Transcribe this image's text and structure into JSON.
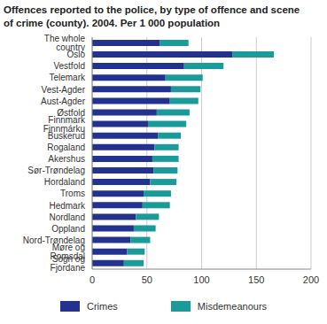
{
  "chart_data": {
    "type": "bar",
    "title": "Offences reported to the police, by type of offence and scene of crime (county). 2004. Per 1 000 population",
    "orientation": "horizontal",
    "stacked": true,
    "grid": true,
    "legend": "bottom",
    "categories": [
      "The whole country",
      "Oslo",
      "Vestfold",
      "Telemark",
      "Vest-Agder",
      "Aust-Agder",
      "Østfold",
      "Finnmark Finnmárku",
      "Buskerud",
      "Rogaland",
      "Akershus",
      "Sør-Trøndelag",
      "Hordaland",
      "Troms",
      "Hedmark",
      "Nordland",
      "Oppland",
      "Nord-Trøndelag",
      "Møre og Romsdal",
      "Sogn og Fjordane"
    ],
    "series": [
      {
        "name": "Crimes",
        "color": "#23318f",
        "values": [
          62,
          128,
          84,
          67,
          72,
          71,
          59,
          51,
          60,
          57,
          55,
          56,
          53,
          47,
          46,
          40,
          38,
          35,
          32,
          29
        ]
      },
      {
        "name": "Misdemeanours",
        "color": "#1b9a9a",
        "values": [
          26,
          38,
          36,
          34,
          27,
          26,
          30,
          35,
          21,
          22,
          24,
          22,
          24,
          25,
          25,
          21,
          20,
          18,
          16,
          18
        ]
      }
    ],
    "xlim": [
      0,
      200
    ],
    "xticks": [
      0,
      50,
      100,
      150,
      200
    ]
  }
}
